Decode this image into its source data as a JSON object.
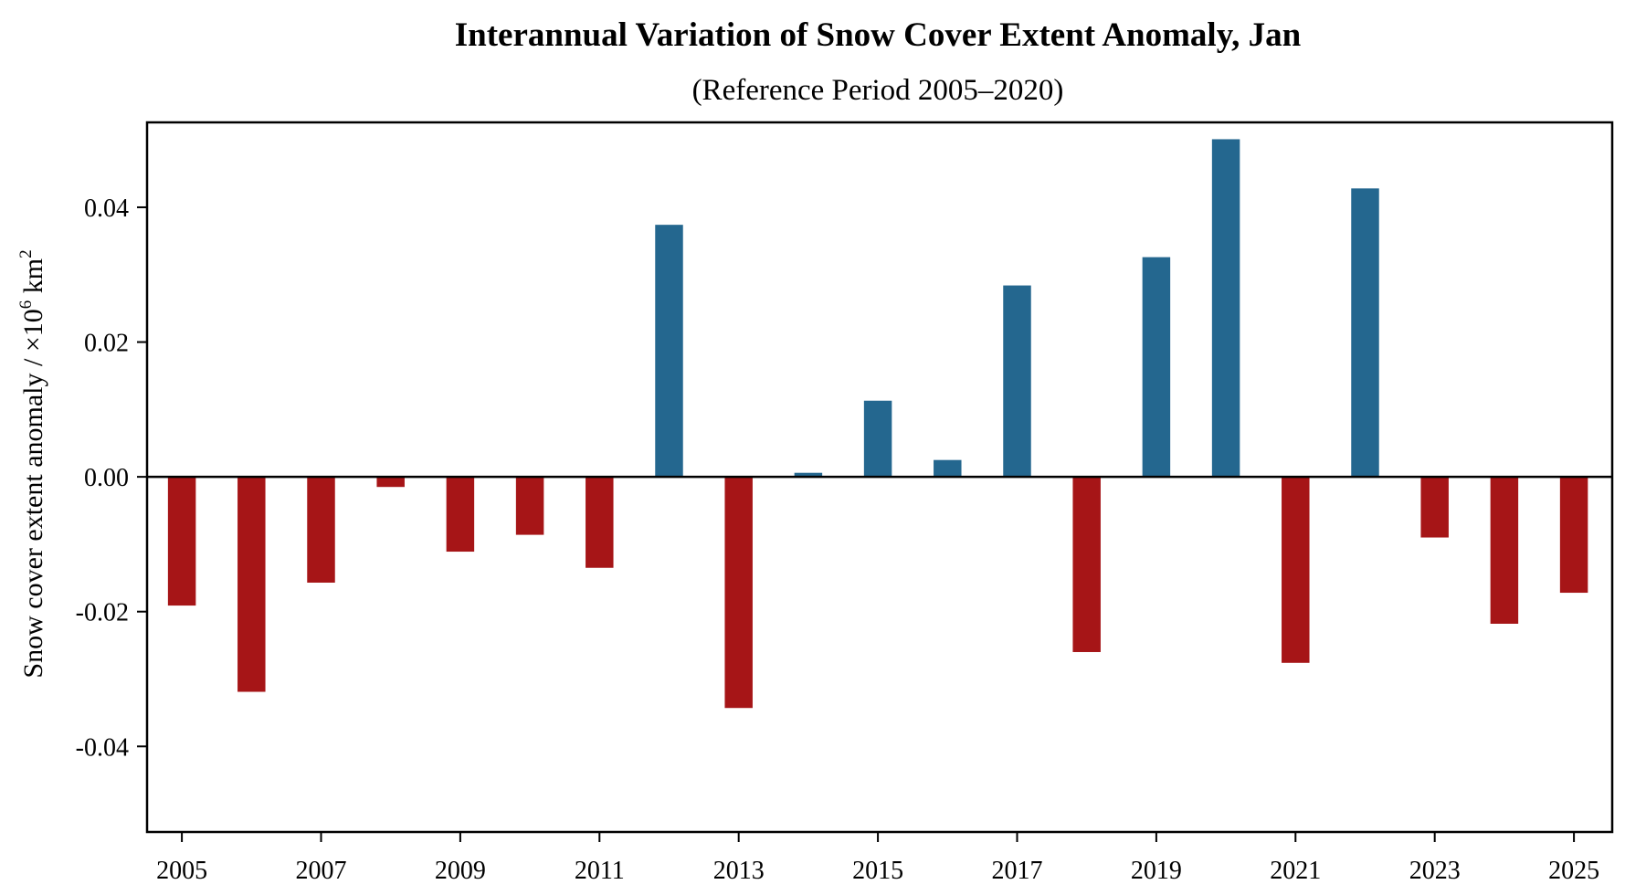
{
  "chart_data": {
    "type": "bar",
    "title": "Interannual Variation of Snow Cover Extent Anomaly, Jan",
    "subtitle": "(Reference Period 2005–2020)",
    "xlabel": "",
    "ylabel": {
      "text": "Snow cover extent anomaly / ×10",
      "sup1": "6",
      "unit": " km",
      "sup2": "2"
    },
    "categories": [
      2005,
      2006,
      2007,
      2008,
      2009,
      2010,
      2011,
      2012,
      2013,
      2014,
      2015,
      2016,
      2017,
      2018,
      2019,
      2020,
      2021,
      2022,
      2023,
      2024,
      2025
    ],
    "values": [
      -0.0191,
      -0.0319,
      -0.0157,
      -0.0015,
      -0.0111,
      -0.0086,
      -0.0135,
      0.0374,
      -0.0343,
      0.0006,
      0.0113,
      0.0025,
      0.0284,
      -0.026,
      0.0326,
      0.0501,
      -0.0276,
      0.0428,
      -0.009,
      -0.0218,
      -0.0172
    ],
    "ylim": [
      -0.0527,
      0.0526
    ],
    "xlim": [
      2004.5,
      2025.55
    ],
    "yticks": [
      -0.04,
      -0.02,
      0.0,
      0.02,
      0.04
    ],
    "ytick_labels": [
      "-0.04",
      "-0.02",
      "0.00",
      "0.02",
      "0.04"
    ],
    "xticks": [
      2005,
      2007,
      2009,
      2011,
      2013,
      2015,
      2017,
      2019,
      2021,
      2023,
      2025
    ],
    "xtick_labels": [
      "2005",
      "2007",
      "2009",
      "2011",
      "2013",
      "2015",
      "2017",
      "2019",
      "2021",
      "2023",
      "2025"
    ],
    "bar_width_years": 0.4,
    "colors": {
      "positive": "#24678f",
      "negative": "#a61517",
      "axis": "#000000",
      "zero_line": "#000000"
    },
    "grid": false,
    "legend": "none"
  }
}
